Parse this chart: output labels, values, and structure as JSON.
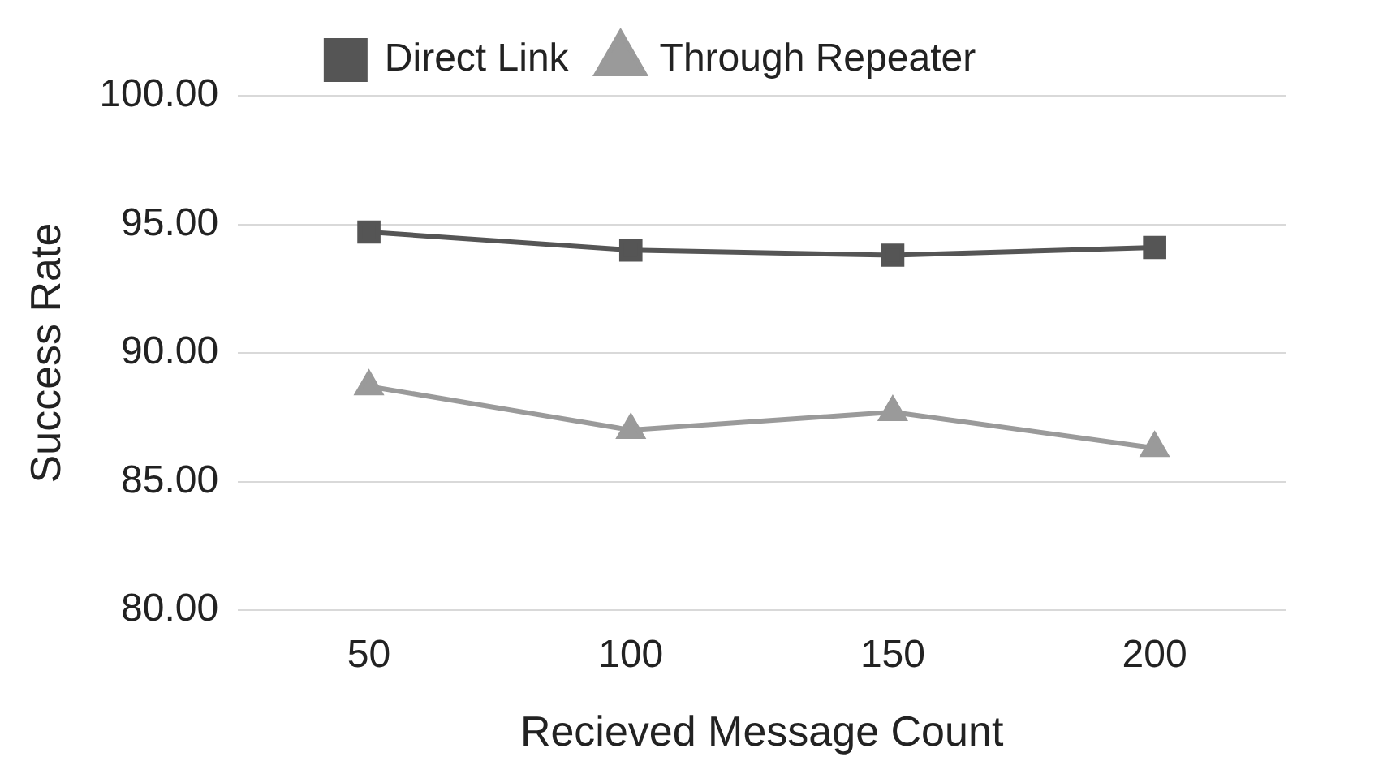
{
  "chart_data": {
    "type": "line",
    "xlabel": "Recieved Message Count",
    "ylabel": "Success Rate",
    "categories": [
      "50",
      "100",
      "150",
      "200"
    ],
    "series": [
      {
        "name": "Direct Link",
        "color": "#555555",
        "marker": "square",
        "values": [
          94.7,
          94.0,
          93.8,
          94.1
        ]
      },
      {
        "name": "Through Repeater",
        "color": "#9a9a9a",
        "marker": "triangle",
        "values": [
          88.7,
          87.0,
          87.7,
          86.3
        ]
      }
    ],
    "ylim": [
      80,
      100
    ],
    "yticks": [
      {
        "value": 80,
        "label": "80.00"
      },
      {
        "value": 85,
        "label": "85.00"
      },
      {
        "value": 90,
        "label": "90.00"
      },
      {
        "value": 95,
        "label": "95.00"
      },
      {
        "value": 100,
        "label": "100.00"
      }
    ],
    "grid": "y",
    "legend": "top",
    "line_style": "solid"
  }
}
